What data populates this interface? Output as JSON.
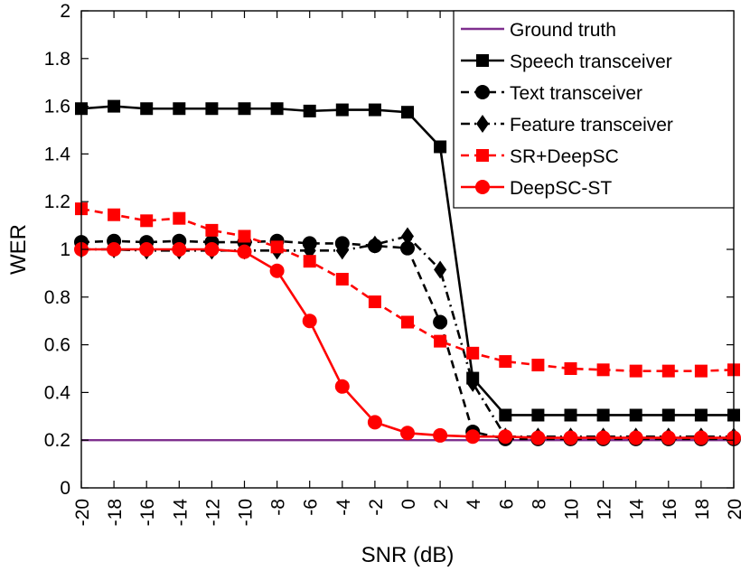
{
  "chart_data": {
    "type": "line",
    "title": "",
    "xlabel": "SNR (dB)",
    "ylabel": "WER",
    "xlim": [
      -20,
      20
    ],
    "ylim": [
      0,
      2
    ],
    "grid": false,
    "legend_position": "top-right",
    "x": [
      -20,
      -18,
      -16,
      -14,
      -12,
      -10,
      -8,
      -6,
      -4,
      -2,
      0,
      2,
      4,
      6,
      8,
      10,
      12,
      14,
      16,
      18,
      20
    ],
    "x_ticks": [
      "-20",
      "-18",
      "-16",
      "-14",
      "-12",
      "-10",
      "-8",
      "-6",
      "-4",
      "-2",
      "0",
      "2",
      "4",
      "6",
      "8",
      "10",
      "12",
      "14",
      "16",
      "18",
      "20"
    ],
    "y_ticks": [
      "0",
      "0.2",
      "0.4",
      "0.6",
      "0.8",
      "1",
      "1.2",
      "1.4",
      "1.6",
      "1.8",
      "2"
    ],
    "series": [
      {
        "name": "Ground truth",
        "color": "#7e2f8e",
        "dash": "solid",
        "marker": "none",
        "values": [
          0.2,
          0.2,
          0.2,
          0.2,
          0.2,
          0.2,
          0.2,
          0.2,
          0.2,
          0.2,
          0.2,
          0.2,
          0.2,
          0.2,
          0.2,
          0.2,
          0.2,
          0.2,
          0.2,
          0.2,
          0.2
        ]
      },
      {
        "name": "Speech transceiver",
        "color": "#000000",
        "dash": "solid",
        "marker": "square",
        "values": [
          1.59,
          1.6,
          1.59,
          1.59,
          1.59,
          1.59,
          1.59,
          1.58,
          1.585,
          1.585,
          1.575,
          1.43,
          0.46,
          0.305,
          0.305,
          0.305,
          0.305,
          0.305,
          0.305,
          0.305,
          0.305
        ]
      },
      {
        "name": "Text transceiver",
        "color": "#000000",
        "dash": "dashed",
        "marker": "circle",
        "values": [
          1.03,
          1.035,
          1.03,
          1.035,
          1.03,
          1.03,
          1.035,
          1.025,
          1.025,
          1.015,
          1.005,
          0.695,
          0.235,
          0.205,
          0.205,
          0.205,
          0.205,
          0.205,
          0.205,
          0.205,
          0.205
        ]
      },
      {
        "name": "Feature transceiver",
        "color": "#000000",
        "dash": "dashdot",
        "marker": "diamond",
        "values": [
          1.0,
          1.0,
          0.995,
          0.995,
          0.995,
          0.995,
          0.995,
          0.995,
          0.995,
          1.02,
          1.055,
          0.915,
          0.44,
          0.215,
          0.215,
          0.215,
          0.215,
          0.215,
          0.215,
          0.215,
          0.215
        ]
      },
      {
        "name": "SR+DeepSC",
        "color": "#ff0000",
        "dash": "dashed",
        "marker": "square",
        "values": [
          1.17,
          1.145,
          1.12,
          1.13,
          1.08,
          1.055,
          1.01,
          0.95,
          0.875,
          0.78,
          0.695,
          0.615,
          0.565,
          0.53,
          0.515,
          0.5,
          0.495,
          0.49,
          0.49,
          0.49,
          0.495
        ]
      },
      {
        "name": "DeepSC-ST",
        "color": "#ff0000",
        "dash": "solid",
        "marker": "circle",
        "values": [
          1.0,
          1.0,
          1.0,
          1.0,
          1.0,
          0.99,
          0.91,
          0.7,
          0.425,
          0.275,
          0.23,
          0.22,
          0.215,
          0.215,
          0.21,
          0.21,
          0.21,
          0.21,
          0.21,
          0.21,
          0.21
        ]
      }
    ]
  }
}
